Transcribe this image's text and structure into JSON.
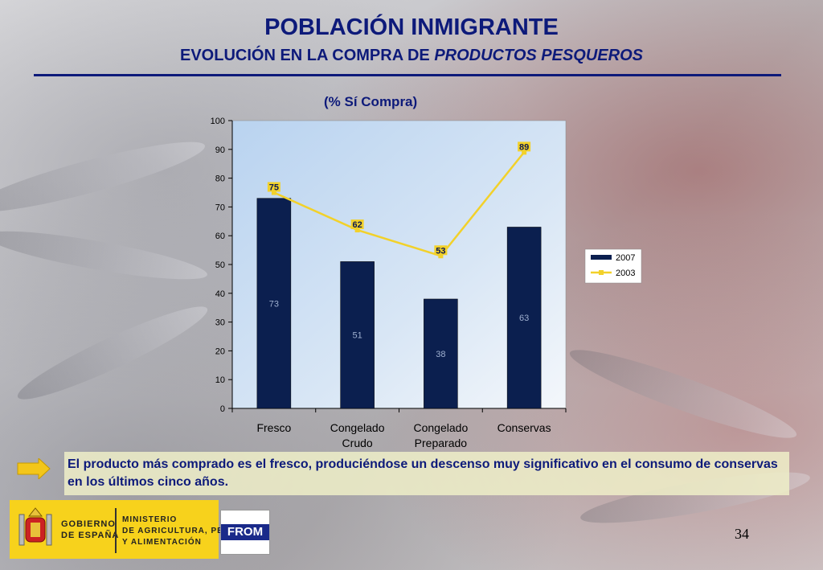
{
  "header": {
    "title": "POBLACIÓN INMIGRANTE",
    "subtitle_prefix": "EVOLUCIÓN EN LA COMPRA DE ",
    "subtitle_italic": "PRODUCTOS PESQUEROS"
  },
  "chart_caption": "(% Sí Compra)",
  "chart_data": {
    "type": "bar",
    "categories": [
      "Fresco",
      "Congelado\nCrudo",
      "Congelado\nPreparado",
      "Conservas"
    ],
    "series": [
      {
        "name": "2007",
        "type": "bar",
        "values": [
          73,
          51,
          38,
          63
        ],
        "color": "#0b1f4f"
      },
      {
        "name": "2003",
        "type": "line",
        "values": [
          75,
          62,
          53,
          89
        ],
        "color": "#f2d12a"
      }
    ],
    "ylim": [
      0,
      100
    ],
    "yticks": [
      0,
      10,
      20,
      30,
      40,
      50,
      60,
      70,
      80,
      90,
      100
    ],
    "legend_position": "right",
    "grid": false,
    "plot_background": "gradient light-blue to white"
  },
  "note": {
    "text": "El producto más comprado es el fresco, produciéndose un descenso muy significativo en el consumo de conservas en los últimos cinco años."
  },
  "footer": {
    "gobierno": [
      "GOBIERNO",
      "DE ESPAÑA"
    ],
    "ministerio": [
      "MINISTERIO",
      "DE AGRICULTURA, PESCA",
      "Y ALIMENTACIÓN"
    ],
    "from_logo": "FROM",
    "page_number": "34"
  },
  "colors": {
    "title": "#0d1a7a",
    "bar": "#0b1f4f",
    "line": "#f2d12a",
    "footer_band": "#f7d21c"
  }
}
